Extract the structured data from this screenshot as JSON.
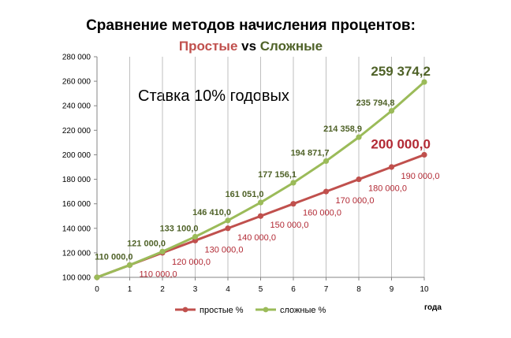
{
  "chart_data": {
    "type": "line",
    "title": "Сравнение методов начисления процентов:",
    "subtitle": {
      "part1": "Простые",
      "part2": " vs ",
      "part3": "Сложные"
    },
    "annotation": "Ставка 10% годовых",
    "xlabel": "года",
    "ylabel": "",
    "x": [
      0,
      1,
      2,
      3,
      4,
      5,
      6,
      7,
      8,
      9,
      10
    ],
    "x_tick_labels": [
      "0",
      "1",
      "2",
      "3",
      "4",
      "5",
      "6",
      "7",
      "8",
      "9",
      "10"
    ],
    "ylim": [
      100000,
      280000
    ],
    "y_ticks": [
      100000,
      120000,
      140000,
      160000,
      180000,
      200000,
      220000,
      240000,
      260000,
      280000
    ],
    "y_tick_labels": [
      "100 000",
      "120 000",
      "140 000",
      "160 000",
      "180 000",
      "200 000",
      "220 000",
      "240 000",
      "260 000",
      "280 000"
    ],
    "grid": "vertical",
    "legend_position": "bottom",
    "series": [
      {
        "name": "простые %",
        "color": "#c0504d",
        "values": [
          100000,
          110000,
          120000,
          130000,
          140000,
          150000,
          160000,
          170000,
          180000,
          190000,
          200000
        ],
        "labels": [
          "",
          "110 000,0",
          "120 000,0",
          "130 000,0",
          "140 000,0",
          "150 000,0",
          "160 000,0",
          "170 000,0",
          "180 000,0",
          "190 000,0",
          "200 000,0"
        ]
      },
      {
        "name": "сложные %",
        "color": "#9bbb59",
        "values": [
          100000,
          110000,
          121000,
          133100,
          146410,
          161051,
          177156.1,
          194871.7,
          214358.9,
          235794.8,
          259374.2
        ],
        "labels": [
          "",
          "110 000,0",
          "121 000,0",
          "133 100,0",
          "146 410,0",
          "161 051,0",
          "177 156,1",
          "194 871,7",
          "214 358,9",
          "235 794,8",
          "259 374,2"
        ]
      }
    ]
  }
}
